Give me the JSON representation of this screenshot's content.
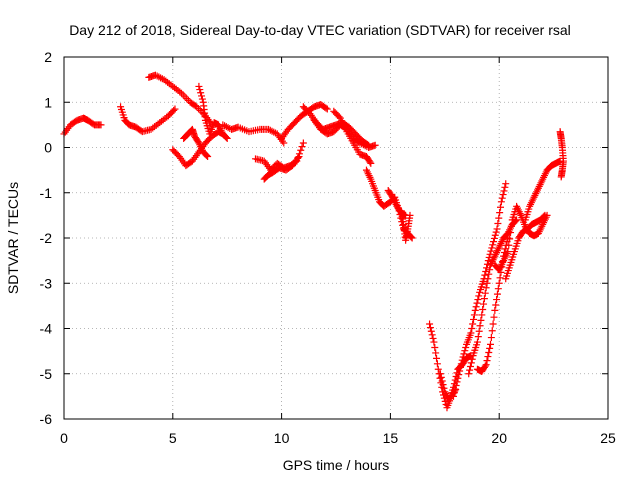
{
  "chart_data": {
    "type": "scatter",
    "title": "Day 212 of 2018, Sidereal Day-to-day VTEC variation (SDTVAR) for receiver rsal",
    "xlabel": "GPS time / hours",
    "ylabel": "SDTVAR / TECUs",
    "xlim": [
      0,
      25
    ],
    "ylim": [
      -6,
      2
    ],
    "xticks": [
      "0",
      "5",
      "10",
      "15",
      "20",
      "25"
    ],
    "yticks": [
      "-6",
      "-5",
      "-4",
      "-3",
      "-2",
      "-1",
      "0",
      "1",
      "2"
    ],
    "grid": true,
    "marker": "plus",
    "color": "#ff0000",
    "segments": [
      {
        "x": [
          0.0,
          0.3,
          0.6,
          0.9,
          1.1,
          1.4,
          1.7
        ],
        "y": [
          0.3,
          0.5,
          0.6,
          0.65,
          0.6,
          0.5,
          0.5
        ]
      },
      {
        "x": [
          2.6,
          2.8,
          3.0,
          3.3,
          3.6,
          4.0,
          4.4,
          4.8,
          5.1
        ],
        "y": [
          0.9,
          0.6,
          0.5,
          0.45,
          0.35,
          0.4,
          0.55,
          0.7,
          0.85
        ]
      },
      {
        "x": [
          3.9,
          4.2,
          4.6,
          5.0,
          5.4,
          5.8,
          6.1,
          6.5,
          6.8
        ],
        "y": [
          1.55,
          1.6,
          1.5,
          1.35,
          1.2,
          1.0,
          0.9,
          0.7,
          0.5
        ]
      },
      {
        "x": [
          5.0,
          5.3,
          5.6,
          5.9,
          6.2,
          6.5,
          6.8,
          7.1,
          7.3
        ],
        "y": [
          -0.05,
          -0.2,
          -0.4,
          -0.3,
          -0.1,
          0.1,
          0.25,
          0.35,
          0.3
        ]
      },
      {
        "x": [
          5.5,
          5.7,
          5.9,
          6.0,
          6.2,
          6.4,
          6.6
        ],
        "y": [
          0.2,
          0.3,
          0.4,
          0.25,
          0.1,
          -0.1,
          -0.2
        ]
      },
      {
        "x": [
          6.2,
          6.4,
          6.5,
          6.7,
          6.9,
          7.1,
          7.3,
          7.5
        ],
        "y": [
          1.35,
          1.0,
          0.6,
          0.3,
          0.55,
          0.5,
          0.3,
          0.2
        ]
      },
      {
        "x": [
          7.3,
          7.7,
          8.0,
          8.5,
          9.0,
          9.4,
          9.8,
          10.1
        ],
        "y": [
          0.5,
          0.4,
          0.45,
          0.35,
          0.4,
          0.4,
          0.3,
          0.1
        ]
      },
      {
        "x": [
          8.8,
          9.2,
          9.5,
          9.8,
          10.1,
          10.4,
          10.7,
          11.0
        ],
        "y": [
          -0.25,
          -0.3,
          -0.5,
          -0.35,
          -0.45,
          -0.4,
          -0.3,
          0.1
        ]
      },
      {
        "x": [
          9.2,
          9.4,
          9.6,
          9.9,
          10.2,
          10.5,
          10.8
        ],
        "y": [
          -0.7,
          -0.6,
          -0.55,
          -0.45,
          -0.5,
          -0.4,
          -0.2
        ]
      },
      {
        "x": [
          10.0,
          10.3,
          10.6,
          10.9,
          11.2,
          11.5,
          11.8,
          12.1
        ],
        "y": [
          0.2,
          0.4,
          0.55,
          0.7,
          0.8,
          0.9,
          0.95,
          0.85
        ]
      },
      {
        "x": [
          11.0,
          11.3,
          11.6,
          11.9,
          12.2,
          12.5,
          12.8,
          13.1,
          13.4,
          13.7,
          14.0
        ],
        "y": [
          0.9,
          0.75,
          0.55,
          0.4,
          0.45,
          0.5,
          0.55,
          0.45,
          0.3,
          0.15,
          0.05
        ]
      },
      {
        "x": [
          11.5,
          11.8,
          12.1,
          12.4,
          12.7,
          13.0,
          13.3,
          13.6,
          14.0,
          14.3
        ],
        "y": [
          0.6,
          0.4,
          0.3,
          0.35,
          0.5,
          0.4,
          0.2,
          0.1,
          0.0,
          0.05
        ]
      },
      {
        "x": [
          12.4,
          12.7,
          13.0,
          13.3,
          13.6,
          13.9,
          14.1
        ],
        "y": [
          0.8,
          0.65,
          0.35,
          0.1,
          -0.15,
          -0.2,
          -0.35
        ]
      },
      {
        "x": [
          13.9,
          14.1,
          14.3,
          14.5,
          14.7,
          15.0,
          15.2,
          15.4,
          15.6,
          15.8,
          16.0
        ],
        "y": [
          -0.5,
          -0.7,
          -0.95,
          -1.2,
          -1.3,
          -1.2,
          -1.1,
          -1.4,
          -1.8,
          -1.9,
          -2.0
        ]
      },
      {
        "x": [
          14.9,
          15.1,
          15.3,
          15.5,
          15.7
        ],
        "y": [
          -0.95,
          -1.1,
          -1.3,
          -1.45,
          -1.5
        ]
      },
      {
        "x": [
          15.5,
          15.6,
          15.7,
          15.8,
          15.9
        ],
        "y": [
          -1.4,
          -1.7,
          -2.05,
          -1.8,
          -1.5
        ]
      },
      {
        "x": [
          16.8,
          17.0,
          17.2,
          17.4,
          17.6,
          17.8,
          18.0
        ],
        "y": [
          -3.9,
          -4.3,
          -4.9,
          -5.4,
          -5.75,
          -5.5,
          -5.35
        ]
      },
      {
        "x": [
          17.3,
          17.5,
          17.7,
          17.9,
          18.1,
          18.3,
          18.5,
          18.7
        ],
        "y": [
          -5.0,
          -5.4,
          -5.6,
          -5.3,
          -4.9,
          -4.8,
          -4.65,
          -4.6
        ]
      },
      {
        "x": [
          17.9,
          18.1,
          18.3,
          18.5,
          18.7,
          18.9,
          19.1,
          19.3,
          19.5,
          19.7,
          19.9,
          20.1,
          20.3
        ],
        "y": [
          -5.5,
          -5.1,
          -4.7,
          -4.35,
          -4.1,
          -3.6,
          -3.2,
          -2.9,
          -2.5,
          -2.15,
          -1.8,
          -1.2,
          -0.8
        ]
      },
      {
        "x": [
          18.6,
          18.8,
          19.0,
          19.2,
          19.4,
          19.6,
          19.8,
          20.0,
          20.2,
          20.4,
          20.6,
          20.8
        ],
        "y": [
          -5.0,
          -4.6,
          -4.3,
          -3.7,
          -3.1,
          -2.6,
          -2.4,
          -2.2,
          -2.0,
          -1.9,
          -1.7,
          -1.6
        ]
      },
      {
        "x": [
          19.0,
          19.2,
          19.4,
          19.6,
          19.8,
          20.0,
          20.2,
          20.4
        ],
        "y": [
          -4.9,
          -4.95,
          -4.8,
          -4.35,
          -3.6,
          -3.0,
          -2.4,
          -2.0
        ]
      },
      {
        "x": [
          19.8,
          20.0,
          20.2,
          20.4,
          20.6,
          20.8,
          21.0,
          21.2,
          21.4,
          21.6,
          21.8,
          22.0,
          22.2
        ],
        "y": [
          -2.6,
          -2.7,
          -2.5,
          -2.3,
          -1.6,
          -1.3,
          -1.5,
          -1.75,
          -1.9,
          -1.95,
          -1.9,
          -1.7,
          -1.5
        ]
      },
      {
        "x": [
          20.3,
          20.5,
          20.7,
          20.9,
          21.1,
          21.3,
          21.5,
          21.7,
          21.9,
          22.1
        ],
        "y": [
          -2.9,
          -2.6,
          -2.3,
          -2.0,
          -1.85,
          -1.8,
          -1.7,
          -1.65,
          -1.6,
          -1.5
        ]
      },
      {
        "x": [
          21.2,
          21.4,
          21.6,
          21.8,
          22.0,
          22.2,
          22.4,
          22.6,
          22.8
        ],
        "y": [
          -1.6,
          -1.3,
          -1.1,
          -0.9,
          -0.7,
          -0.5,
          -0.4,
          -0.35,
          -0.3
        ]
      },
      {
        "x": [
          22.8,
          22.85,
          22.9,
          22.95,
          22.9,
          22.85
        ],
        "y": [
          0.35,
          0.2,
          0.0,
          -0.3,
          -0.5,
          -0.65
        ]
      }
    ]
  }
}
